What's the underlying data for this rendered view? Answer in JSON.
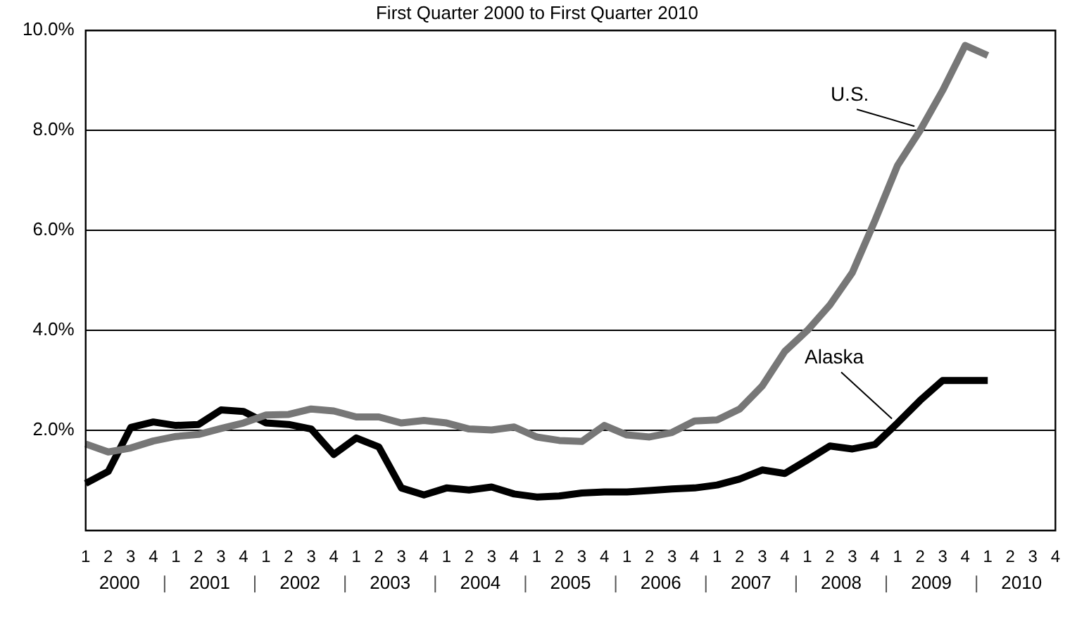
{
  "chart_data": {
    "type": "line",
    "title": "First Quarter 2000 to First Quarter 2010",
    "categories": [
      "1",
      "2",
      "3",
      "4",
      "1",
      "2",
      "3",
      "4",
      "1",
      "2",
      "3",
      "4",
      "1",
      "2",
      "3",
      "4",
      "1",
      "2",
      "3",
      "4",
      "1",
      "2",
      "3",
      "4",
      "1",
      "2",
      "3",
      "4",
      "1",
      "2",
      "3",
      "4",
      "1",
      "2",
      "3",
      "4",
      "1",
      "2",
      "3",
      "4",
      "1",
      "2",
      "3",
      "4"
    ],
    "annotations": [
      "2000",
      "2001",
      "2002",
      "2003",
      "2004",
      "2005",
      "2006",
      "2007",
      "2008",
      "2009",
      "2010"
    ],
    "series": [
      {
        "name": "U.S.",
        "color": "#777777",
        "values": [
          1.73,
          1.57,
          1.65,
          1.79,
          1.88,
          1.92,
          2.04,
          2.15,
          2.31,
          2.32,
          2.43,
          2.39,
          2.27,
          2.27,
          2.15,
          2.2,
          2.15,
          2.03,
          2.01,
          2.07,
          1.87,
          1.8,
          1.78,
          2.1,
          1.91,
          1.87,
          1.96,
          2.19,
          2.21,
          2.43,
          2.89,
          3.58,
          4.0,
          4.51,
          5.16,
          6.2,
          7.3,
          8.0,
          8.8,
          9.7,
          9.5,
          null,
          null,
          null
        ]
      },
      {
        "name": "Alaska",
        "color": "#000000",
        "values": [
          0.94,
          1.18,
          2.06,
          2.17,
          2.1,
          2.12,
          2.41,
          2.38,
          2.15,
          2.12,
          2.03,
          1.52,
          1.85,
          1.67,
          0.85,
          0.71,
          0.85,
          0.81,
          0.87,
          0.73,
          0.67,
          0.69,
          0.75,
          0.77,
          0.77,
          0.8,
          0.83,
          0.85,
          0.91,
          1.03,
          1.21,
          1.14,
          1.41,
          1.69,
          1.63,
          1.72,
          2.15,
          2.6,
          3.0,
          3.0,
          3.0,
          null,
          null,
          null
        ]
      }
    ],
    "ylim": [
      0,
      10
    ],
    "yticks": [
      {
        "value": 0,
        "label": null
      },
      {
        "value": 2,
        "label": "2.0%"
      },
      {
        "value": 4,
        "label": "4.0%"
      },
      {
        "value": 6,
        "label": "6.0%"
      },
      {
        "value": 8,
        "label": "8.0%"
      },
      {
        "value": 10,
        "label": "10.0%"
      }
    ],
    "grid": "y",
    "legend": false,
    "marker": "none",
    "line_style": "solid"
  }
}
